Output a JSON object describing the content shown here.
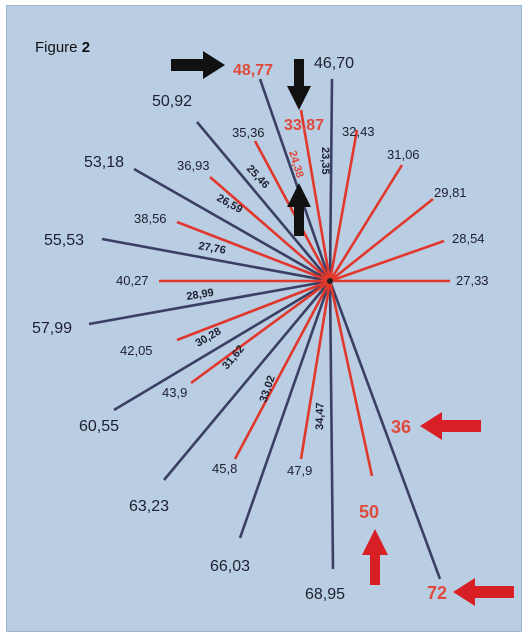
{
  "figure": {
    "word": "Figure",
    "number": "2"
  },
  "colors": {
    "background": "#b9cde3",
    "navy_line": "#3a3f63",
    "red_line": "#e0382c",
    "red_text": "#e04a3c",
    "dark_text": "#1e2030",
    "arrow_black": "#111111",
    "arrow_red": "#d91f26"
  },
  "outer_labels": [
    "48,77",
    "46,70",
    "33,87",
    "32,43",
    "31,06",
    "29,81",
    "28,54",
    "27,33",
    "50,92",
    "35,36",
    "36,93",
    "38,56",
    "40,27",
    "42,05",
    "43,9",
    "45,8",
    "47,9",
    "53,18",
    "55,53",
    "57,99",
    "60,55",
    "63,23",
    "66,03",
    "68,95"
  ],
  "inner_labels": [
    "24,38",
    "23,35",
    "25,46",
    "26,59",
    "27,76",
    "28,99",
    "30,28",
    "31,62",
    "33,02",
    "34,47"
  ],
  "marker_labels": [
    "36",
    "50",
    "72"
  ]
}
